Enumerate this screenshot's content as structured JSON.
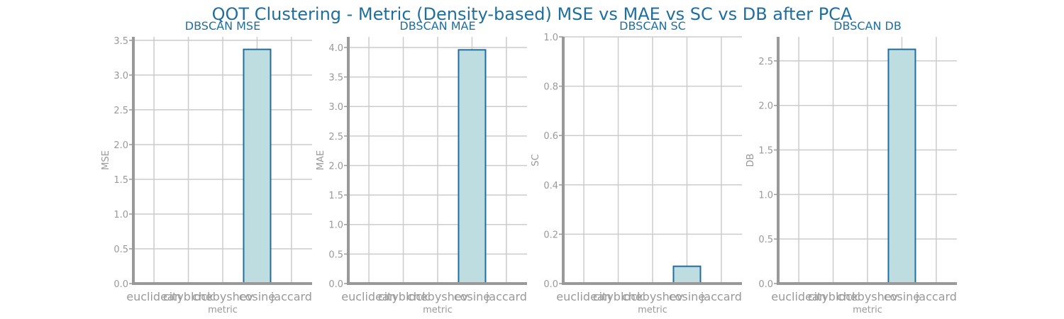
{
  "figure": {
    "title": "QOT Clustering - Metric (Density-based) MSE vs MAE vs SC vs DB after PCA"
  },
  "colors": {
    "title": "#1f6f9e",
    "bar_fill": "#bddde1",
    "bar_edge": "#1f6f9e",
    "grid": "#cccccc",
    "spine": "#999999",
    "tick_text": "#999999"
  },
  "chart_data": [
    {
      "type": "bar",
      "title": "DBSCAN MSE",
      "xlabel": "metric",
      "ylabel": "MSE",
      "categories": [
        "euclidean",
        "cityblock",
        "chebyshev",
        "cosine",
        "jaccard"
      ],
      "values": [
        0,
        0,
        0,
        3.37,
        0
      ],
      "ylim": [
        0,
        3.55
      ],
      "yticks": [
        "0.0",
        "0.5",
        "1.0",
        "1.5",
        "2.0",
        "2.5",
        "3.0",
        "3.5"
      ],
      "grid": true
    },
    {
      "type": "bar",
      "title": "DBSCAN MAE",
      "xlabel": "metric",
      "ylabel": "MAE",
      "categories": [
        "euclidean",
        "cityblock",
        "chebyshev",
        "cosine",
        "jaccard"
      ],
      "values": [
        0,
        0,
        0,
        3.96,
        0
      ],
      "ylim": [
        0,
        4.18
      ],
      "yticks": [
        "0.0",
        "0.5",
        "1.0",
        "1.5",
        "2.0",
        "2.5",
        "3.0",
        "3.5",
        "4.0"
      ],
      "grid": true
    },
    {
      "type": "bar",
      "title": "DBSCAN SC",
      "xlabel": "metric",
      "ylabel": "SC",
      "categories": [
        "euclidean",
        "cityblock",
        "chebyshev",
        "cosine",
        "jaccard"
      ],
      "values": [
        0,
        0,
        0,
        0.07,
        0
      ],
      "ylim": [
        0,
        1.0
      ],
      "yticks": [
        "0.0",
        "0.2",
        "0.4",
        "0.6",
        "0.8",
        "1.0"
      ],
      "grid": true
    },
    {
      "type": "bar",
      "title": "DBSCAN DB",
      "xlabel": "metric",
      "ylabel": "DB",
      "categories": [
        "euclidean",
        "cityblock",
        "chebyshev",
        "cosine",
        "jaccard"
      ],
      "values": [
        0,
        0,
        0,
        2.63,
        0
      ],
      "ylim": [
        0,
        2.77
      ],
      "yticks": [
        "0.0",
        "0.5",
        "1.0",
        "1.5",
        "2.0",
        "2.5"
      ],
      "grid": true
    }
  ]
}
